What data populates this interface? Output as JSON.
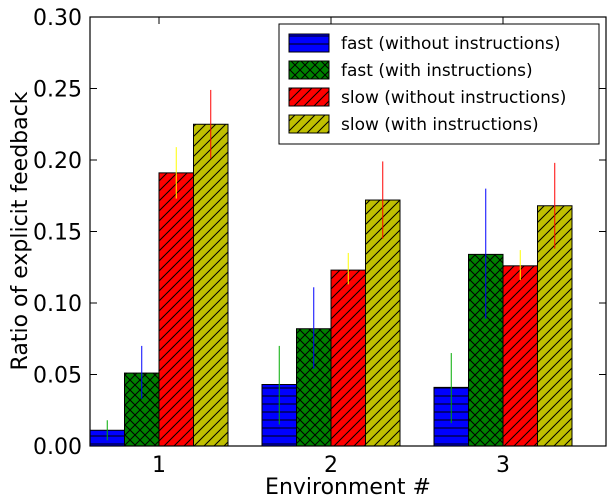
{
  "chart_data": {
    "type": "bar",
    "title": "",
    "xlabel": "Environment #",
    "ylabel": "Ratio of explicit feedback",
    "categories": [
      "1",
      "2",
      "3"
    ],
    "ylim": [
      0,
      0.3
    ],
    "yticks": [
      "0.00",
      "0.05",
      "0.10",
      "0.15",
      "0.20",
      "0.25",
      "0.30"
    ],
    "grid": false,
    "legend_position": "top-right",
    "series": [
      {
        "name": "fast (without instructions)",
        "color": "#0000ff",
        "hatch": "horizontal",
        "values": [
          0.011,
          0.043,
          0.041
        ],
        "err_low": [
          0.004,
          0.015,
          0.016
        ],
        "err_high": [
          0.018,
          0.07,
          0.065
        ],
        "err_color": "#00aa00"
      },
      {
        "name": "fast (with instructions)",
        "color": "#008000",
        "hatch": "crosshatch",
        "values": [
          0.051,
          0.082,
          0.134
        ],
        "err_low": [
          0.033,
          0.054,
          0.089
        ],
        "err_high": [
          0.07,
          0.111,
          0.18
        ],
        "err_color": "#0000ff"
      },
      {
        "name": "slow (without instructions)",
        "color": "#ff0000",
        "hatch": "diagonal",
        "values": [
          0.191,
          0.123,
          0.126
        ],
        "err_low": [
          0.173,
          0.113,
          0.116
        ],
        "err_high": [
          0.209,
          0.135,
          0.137
        ],
        "err_color": "#ffff00"
      },
      {
        "name": "slow (with instructions)",
        "color": "#bfbf00",
        "hatch": "diagonal",
        "values": [
          0.225,
          0.172,
          0.168
        ],
        "err_low": [
          0.201,
          0.145,
          0.138
        ],
        "err_high": [
          0.249,
          0.199,
          0.198
        ],
        "err_color": "#ff0000"
      }
    ]
  }
}
